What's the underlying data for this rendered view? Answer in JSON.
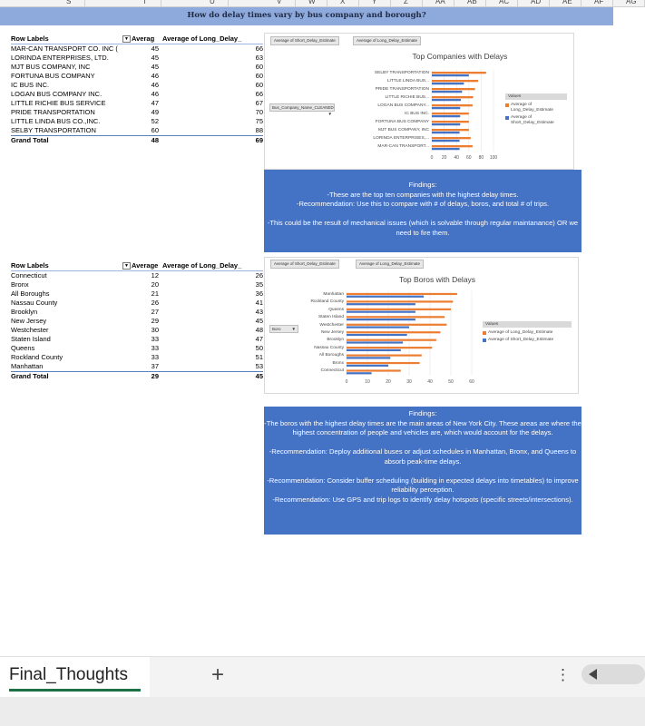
{
  "columns": [
    "S",
    "T",
    "U",
    "V",
    "W",
    "X",
    "Y",
    "Z",
    "AA",
    "AB",
    "AC",
    "AD",
    "AE",
    "AF",
    "AG"
  ],
  "title": "How do delay times vary by bus company and borough?",
  "pivot1": {
    "headers": [
      "Row Labels",
      "Averag",
      "Average of Long_Delay_"
    ],
    "rows": [
      {
        "label": "MAR-CAN TRANSPORT CO. INC (",
        "a": "45",
        "b": "66"
      },
      {
        "label": "LORINDA ENTERPRISES, LTD.",
        "a": "45",
        "b": "63"
      },
      {
        "label": "MJT BUS COMPANY, INC",
        "a": "45",
        "b": "60"
      },
      {
        "label": "FORTUNA BUS COMPANY",
        "a": "46",
        "b": "60"
      },
      {
        "label": "IC BUS INC.",
        "a": "46",
        "b": "60"
      },
      {
        "label": "LOGAN BUS COMPANY INC.",
        "a": "46",
        "b": "66"
      },
      {
        "label": "LITTLE RICHIE BUS SERVICE",
        "a": "47",
        "b": "67"
      },
      {
        "label": "PRIDE TRANSPORTATION",
        "a": "49",
        "b": "70"
      },
      {
        "label": "LITTLE LINDA BUS CO.,INC.",
        "a": "52",
        "b": "75"
      },
      {
        "label": "SELBY TRANSPORTATION",
        "a": "60",
        "b": "88"
      }
    ],
    "total": {
      "label": "Grand Total",
      "a": "48",
      "b": "69"
    }
  },
  "pivot2": {
    "headers": [
      "Row Labels",
      "Average",
      "Average of Long_Delay_"
    ],
    "rows": [
      {
        "label": "Connecticut",
        "a": "12",
        "b": "26"
      },
      {
        "label": "Bronx",
        "a": "20",
        "b": "35"
      },
      {
        "label": "All Boroughs",
        "a": "21",
        "b": "36"
      },
      {
        "label": "Nassau County",
        "a": "26",
        "b": "41"
      },
      {
        "label": "Brooklyn",
        "a": "27",
        "b": "43"
      },
      {
        "label": "New Jersey",
        "a": "29",
        "b": "45"
      },
      {
        "label": "Westchester",
        "a": "30",
        "b": "48"
      },
      {
        "label": "Staten Island",
        "a": "33",
        "b": "47"
      },
      {
        "label": "Queens",
        "a": "33",
        "b": "50"
      },
      {
        "label": "Rockland County",
        "a": "33",
        "b": "51"
      },
      {
        "label": "Manhattan",
        "a": "37",
        "b": "53"
      }
    ],
    "total": {
      "label": "Grand Total",
      "a": "29",
      "b": "45"
    }
  },
  "chart1_ui": {
    "chips": [
      "Average of Short_Delay_Estimate",
      "Average of Long_Delay_Estimate"
    ],
    "filter_chip": "Bus_Company_Name_CLEANED",
    "legend_header": "Values",
    "legend_items": [
      "Average of Long_Delay_Estimate",
      "Average of Short_Delay_Estimate"
    ]
  },
  "chart2_ui": {
    "chips": [
      "Average of Short_Delay_Estimate",
      "Average of Long_Delay_Estimate"
    ],
    "filter_chip": "Boro",
    "legend_header": "Values",
    "legend_items": [
      "Average of Long_Delay_Estimate",
      "Average of Short_Delay_Estimate"
    ]
  },
  "chart_data": [
    {
      "type": "bar",
      "orientation": "horizontal",
      "title": "Top Companies with Delays",
      "categories": [
        "SELBY TRANSPORTATION",
        "LITTLE LINDA BUS...",
        "PRIDE TRANSPORTATION",
        "LITTLE RICHIE BUS...",
        "LOGAN BUS COMPANY...",
        "IC BUS INC.",
        "FORTUNA BUS COMPANY",
        "MJT BUS COMPANY, INC",
        "LORINDA ENTERPRISES,...",
        "MAR-CAN TRANSPORT..."
      ],
      "series": [
        {
          "name": "Average of Long_Delay_Estimate",
          "color": "#ed7d31",
          "values": [
            88,
            75,
            70,
            67,
            66,
            60,
            60,
            60,
            63,
            66
          ]
        },
        {
          "name": "Average of Short_Delay_Estimate",
          "color": "#4472c4",
          "values": [
            60,
            52,
            49,
            47,
            46,
            46,
            46,
            45,
            45,
            45
          ]
        }
      ],
      "xticks": [
        "0",
        "20",
        "40",
        "60",
        "80",
        "100"
      ],
      "xlim": [
        0,
        100
      ],
      "legend": "right"
    },
    {
      "type": "bar",
      "orientation": "horizontal",
      "title": "Top Boros with Delays",
      "categories": [
        "Manhattan",
        "Rockland County",
        "Queens",
        "Staten Island",
        "Westchester",
        "New Jersey",
        "Brooklyn",
        "Nassau County",
        "All Boroughs",
        "Bronx",
        "Connecticut"
      ],
      "series": [
        {
          "name": "Average of Long_Delay_Estimate",
          "color": "#ed7d31",
          "values": [
            53,
            51,
            50,
            47,
            48,
            45,
            43,
            41,
            36,
            35,
            26
          ]
        },
        {
          "name": "Average of Short_Delay_Estimate",
          "color": "#4472c4",
          "values": [
            37,
            33,
            33,
            33,
            30,
            29,
            27,
            26,
            21,
            20,
            12
          ]
        }
      ],
      "xticks": [
        "0",
        "10",
        "20",
        "30",
        "40",
        "50",
        "60"
      ],
      "xlim": [
        0,
        60
      ],
      "legend": "right"
    }
  ],
  "findings1": [
    "Findings:",
    "-These are the top ten companies with the highest delay times.",
    "-Recommendation: Use this to compare with # of delays, boros, and total # of trips.",
    "",
    "-This could be the result of mechanical issues (which is solvable through regular maintanance) OR we need to fire them."
  ],
  "findings2": [
    "Findings:",
    "-The boros with the highest delay times are the main areas of New York City. These areas are where the highest concentration of people and vehicles are, which would account for the delays.",
    "",
    "-Recommendation: Deploy additional buses or adjust schedules in Manhattan, Bronx, and Queens to absorb peak-time delays.",
    "",
    "-Recommendation: Consider buffer scheduling (building in expected delays into timetables) to improve reliability perception.",
    "-Recommendation: Use GPS and trip logs to identify delay hotspots (specific streets/intersections)."
  ],
  "sheet_tab": "Final_Thoughts",
  "add_sheet": "+",
  "more_icon": "⋮"
}
